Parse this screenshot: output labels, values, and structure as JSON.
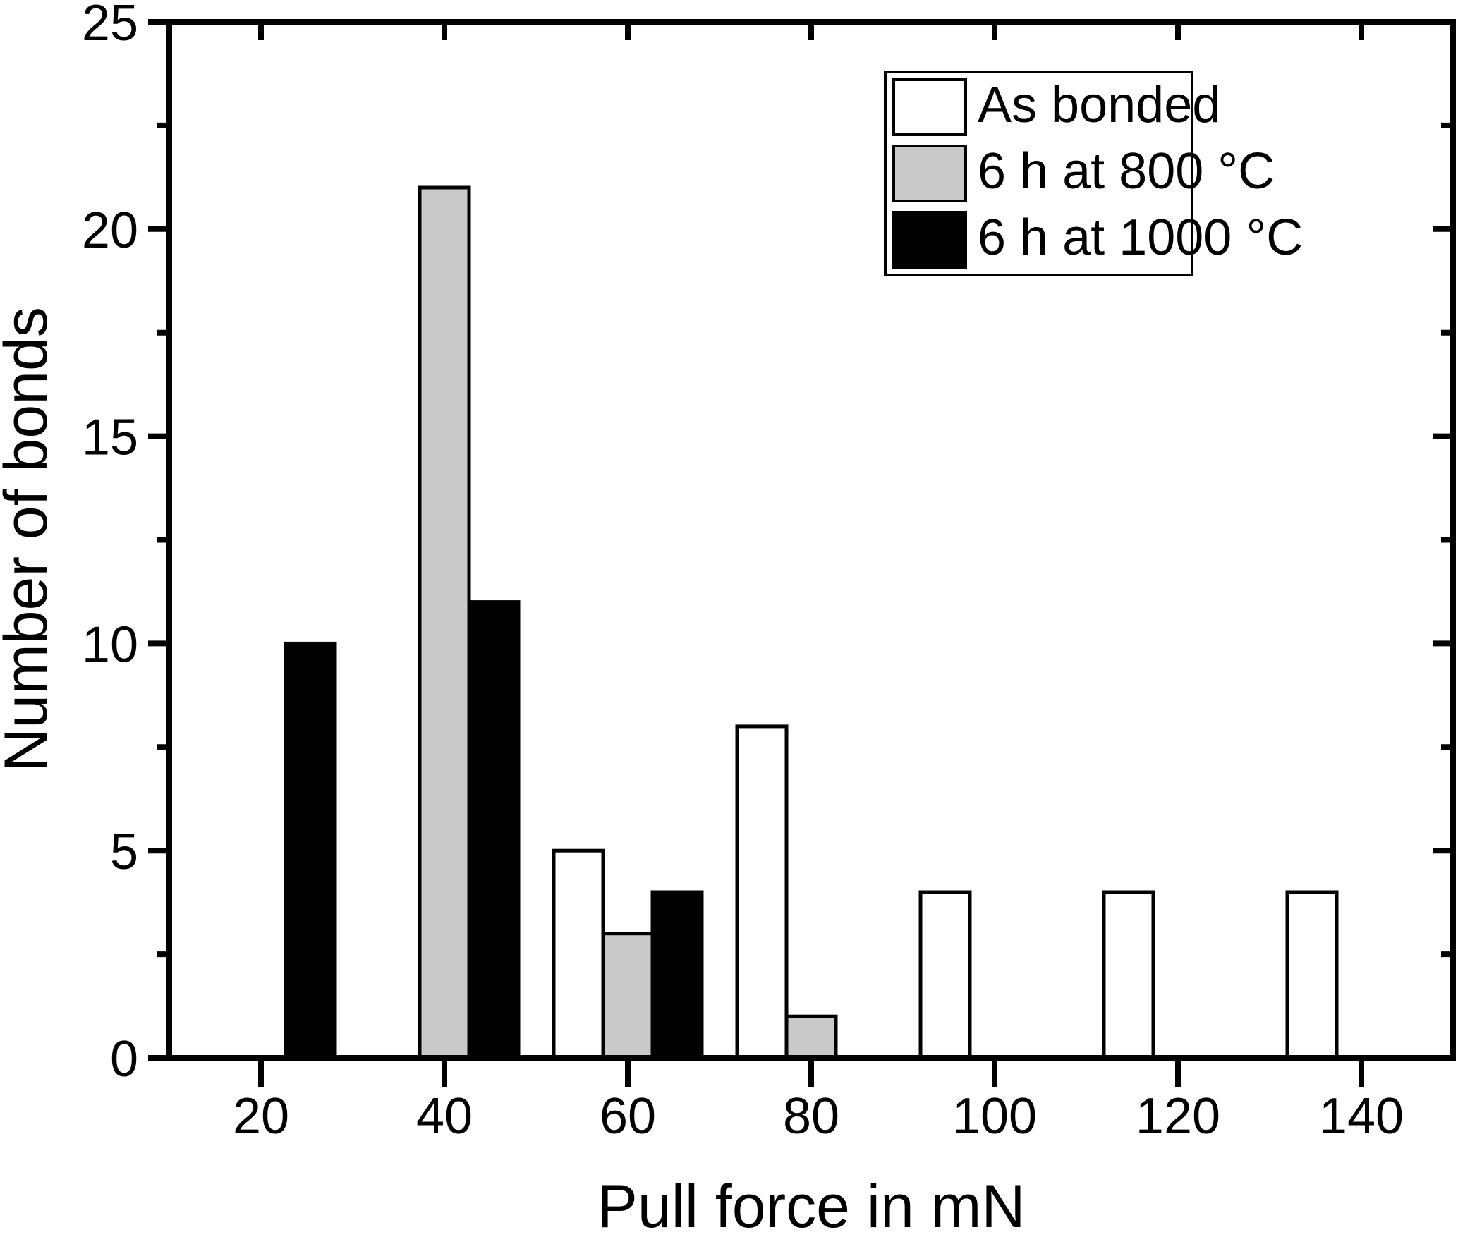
{
  "figure": {
    "background": "#ffffff",
    "axis_color": "#000000"
  },
  "chart_data": {
    "type": "bar",
    "subtype": "grouped-histogram",
    "title": "",
    "xlabel": "Pull force in mN",
    "ylabel": "Number of bonds",
    "categories": [
      20,
      40,
      60,
      80,
      100,
      120,
      140
    ],
    "series": [
      {
        "name": "As bonded",
        "fill": "#ffffff",
        "values": [
          0,
          0,
          5,
          8,
          4,
          4,
          4
        ]
      },
      {
        "name": "6 h at 800 °C",
        "fill": "#c9c9c9",
        "values": [
          0,
          21,
          3,
          1,
          0,
          0,
          0
        ]
      },
      {
        "name": "6 h at 1000 °C",
        "fill": "#000000",
        "values": [
          10,
          11,
          4,
          0,
          0,
          0,
          0
        ]
      }
    ],
    "xlim": [
      10,
      150
    ],
    "ylim": [
      0,
      25
    ],
    "x_major_ticks": [
      20,
      40,
      60,
      80,
      100,
      120,
      140
    ],
    "y_major_ticks": [
      0,
      5,
      10,
      15,
      20,
      25
    ],
    "y_minor_ticks": [
      2.5,
      7.5,
      12.5,
      17.5,
      22.5
    ],
    "bar_width_mN": 5.385,
    "bar_stroke": "#000000",
    "grid": false,
    "legend_position": "top-right"
  }
}
